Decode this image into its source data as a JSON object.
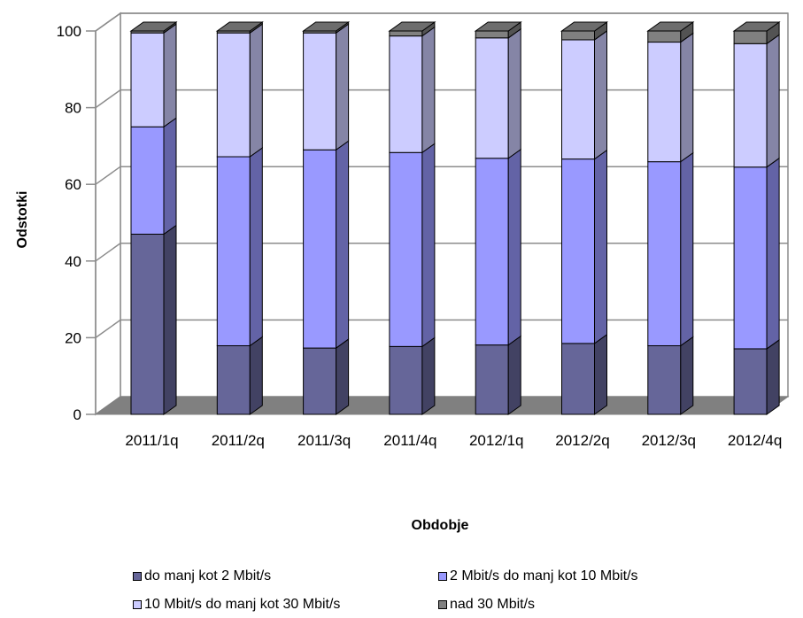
{
  "chart_data": {
    "type": "bar",
    "stacked": true,
    "three_d": true,
    "title": "",
    "xlabel": "Obdobje",
    "ylabel": "Odstotki",
    "ylim": [
      0,
      100
    ],
    "yticks": [
      "0",
      "20",
      "40",
      "60",
      "80",
      "100"
    ],
    "grid": true,
    "legend_position": "bottom",
    "categories": [
      "2011/1q",
      "2011/2q",
      "2011/3q",
      "2011/4q",
      "2012/1q",
      "2012/2q",
      "2012/3q",
      "2012/4q"
    ],
    "series": [
      {
        "name": "do manj kot 2 Mbit/s",
        "color": "#666699",
        "values": [
          47.0,
          17.9,
          17.3,
          17.7,
          18.1,
          18.5,
          17.9,
          17.1
        ]
      },
      {
        "name": "2 Mbit/s do manj kot 10 Mbit/s",
        "color": "#9999ff",
        "values": [
          28.0,
          49.3,
          51.7,
          50.6,
          48.7,
          48.1,
          48.0,
          47.4
        ]
      },
      {
        "name": "10 Mbit/s do manj kot 30 Mbit/s",
        "color": "#ccccff",
        "values": [
          24.5,
          32.3,
          30.5,
          30.4,
          31.4,
          31.1,
          31.2,
          32.2
        ]
      },
      {
        "name": "nad 30 Mbit/s",
        "color": "#808080",
        "values": [
          0.5,
          0.5,
          0.5,
          1.3,
          1.8,
          2.3,
          2.9,
          3.3
        ]
      }
    ]
  }
}
